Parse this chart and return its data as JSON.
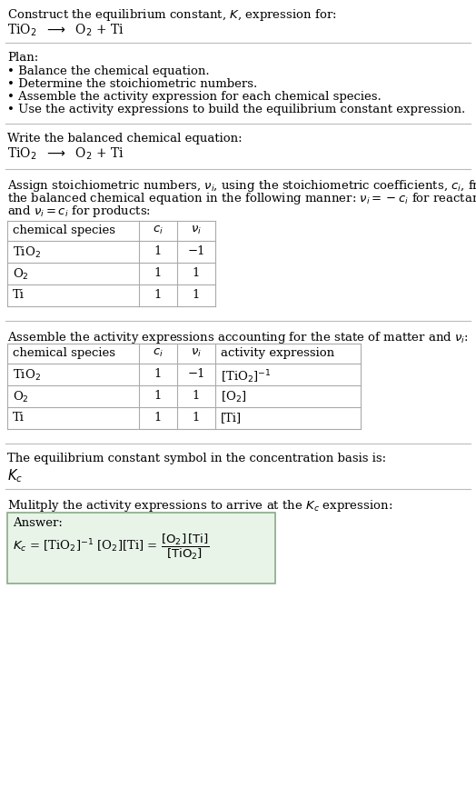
{
  "bg_color": "#ffffff",
  "table_line_color": "#aaaaaa",
  "answer_box_color": "#e8f4e8",
  "answer_box_border": "#88aa88",
  "text_color": "#000000",
  "font_size": 9.5,
  "plan_bullets": [
    "Balance the chemical equation.",
    "Determine the stoichiometric numbers.",
    "Assemble the activity expression for each chemical species.",
    "Use the activity expressions to build the equilibrium constant expression."
  ]
}
